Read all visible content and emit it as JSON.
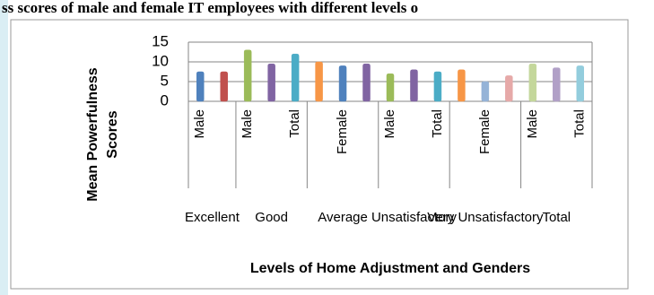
{
  "page_title": "ss scores of male and female IT employees with different levels o",
  "chart_data": {
    "type": "bar",
    "y_label": [
      "Mean Powerfulness",
      "Scores"
    ],
    "x_label": "Levels of Home Adjustment and Genders",
    "categories": [
      "Male",
      null,
      "Male",
      null,
      "Total",
      null,
      "Female",
      null,
      "Male",
      null,
      "Total",
      null,
      "Female",
      null,
      "Male",
      null,
      "Total"
    ],
    "group_labels": [
      "Excellent",
      "Good",
      "Average",
      "Unsatisfactory",
      "Very Unsatisfactory",
      "Total"
    ],
    "group_spans": [
      2,
      3,
      3,
      3,
      3,
      3
    ],
    "values": [
      7.5,
      7.5,
      13,
      9.5,
      12,
      10,
      9,
      9.5,
      7,
      8,
      7.5,
      8,
      5,
      6.5,
      9.5,
      8.5,
      9
    ],
    "colors": [
      "#4f81bd",
      "#c0504d",
      "#9bbb59",
      "#8064a2",
      "#4bacc6",
      "#f79646",
      "#4f81bd",
      "#8064a2",
      "#9bbb59",
      "#8064a2",
      "#4bacc6",
      "#f79646",
      "#95b3d7",
      "#e6a9a8",
      "#c4d79b",
      "#b1a0c7",
      "#93cddd"
    ],
    "ylim": [
      0,
      15
    ],
    "yticks": [
      0,
      5,
      10,
      15
    ],
    "grid": true
  }
}
